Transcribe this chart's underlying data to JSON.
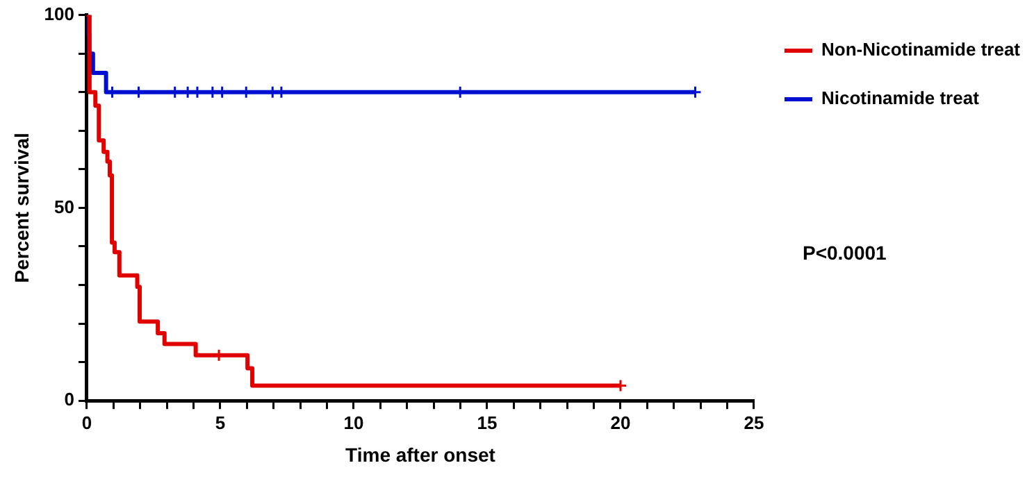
{
  "chart_data": {
    "type": "step",
    "xlabel": "Time after onset",
    "ylabel": "Percent survival",
    "xlim": [
      0,
      25
    ],
    "xticks": [
      0,
      {
        "value": 1,
        "label": null
      },
      {
        "value": 2,
        "label": null
      },
      {
        "value": 3,
        "label": null
      },
      {
        "value": 4,
        "label": null
      },
      5,
      {
        "value": 6,
        "label": null
      },
      {
        "value": 7,
        "label": null
      },
      {
        "value": 8,
        "label": null
      },
      {
        "value": 9,
        "label": null
      },
      10,
      {
        "value": 11,
        "label": null
      },
      {
        "value": 12,
        "label": null
      },
      {
        "value": 13,
        "label": null
      },
      {
        "value": 14,
        "label": null
      },
      15,
      {
        "value": 16,
        "label": null
      },
      {
        "value": 17,
        "label": null
      },
      {
        "value": 18,
        "label": null
      },
      {
        "value": 19,
        "label": null
      },
      20,
      {
        "value": 21,
        "label": null
      },
      {
        "value": 22,
        "label": null
      },
      {
        "value": 23,
        "label": null
      },
      {
        "value": 24,
        "label": null
      },
      25
    ],
    "ylim": [
      0,
      100
    ],
    "yticks": [
      0,
      {
        "value": 10,
        "label": null
      },
      {
        "value": 20,
        "label": null
      },
      {
        "value": 30,
        "label": null
      },
      {
        "value": 40,
        "label": null
      },
      50,
      {
        "value": 60,
        "label": null
      },
      {
        "value": 70,
        "label": null
      },
      {
        "value": 80,
        "label": null
      },
      {
        "value": 90,
        "label": null
      },
      100
    ],
    "grid": false,
    "legend": "right",
    "line_style": "solid",
    "series": [
      {
        "name": "Non-Nicotinamide treat",
        "color": "#e00000",
        "x": [
          0,
          0.1,
          0.32,
          0.45,
          0.63,
          0.77,
          0.86,
          0.94,
          1.04,
          1.22,
          1.89,
          1.98,
          2.66,
          2.91,
          4.08,
          6.02,
          6.2,
          20
        ],
        "values": [
          100,
          80,
          76.5,
          67.5,
          64.5,
          62,
          58.4,
          41,
          38.5,
          32.5,
          29.5,
          20.5,
          17.5,
          14.7,
          11.8,
          8.4,
          3.9,
          3.9
        ]
      },
      {
        "name": "Nicotinamide treat",
        "color": "#0010d0",
        "x": [
          0,
          0.03,
          0.09,
          0.23,
          0.72,
          22.8
        ],
        "values": [
          100,
          95,
          90,
          85,
          80,
          80
        ]
      },
      {
        "type": "scatter",
        "marker": "cross",
        "color": "#e00000",
        "x": [
          4.95,
          20
        ],
        "values": [
          11.8,
          3.9
        ]
      },
      {
        "type": "scatter",
        "marker": "cross",
        "color": "#0010d0",
        "x": [
          0.95,
          1.94,
          3.3,
          3.78,
          4.14,
          4.71,
          5.07,
          5.97,
          6.96,
          7.29,
          13.99,
          22.8
        ],
        "values": [
          80,
          80,
          80,
          80,
          80,
          80,
          80,
          80,
          80,
          80,
          80,
          80
        ]
      }
    ],
    "annotations": [
      "P<0.0001"
    ]
  }
}
